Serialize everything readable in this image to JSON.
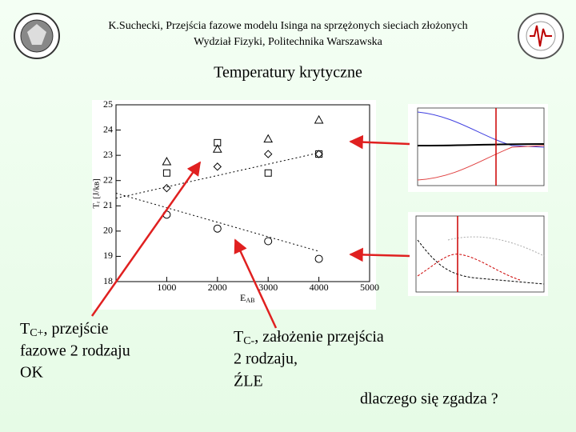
{
  "header": {
    "line1": "K.Suchecki, Przejścia fazowe modelu Isinga na sprzężonych sieciach złożonych",
    "line2": "Wydział Fizyki, Politechnika Warszawska"
  },
  "title": "Temperatury krytyczne",
  "chart_data": {
    "type": "scatter",
    "x_label": {
      "main": "E",
      "sub": "AB"
    },
    "y_label": "Tᵣ [J/kʙ]",
    "x": [
      1000,
      2000,
      3000,
      4000
    ],
    "series": [
      {
        "marker": "triangle",
        "color": "#000000",
        "values": [
          22.75,
          23.25,
          23.65,
          24.4
        ]
      },
      {
        "marker": "square",
        "color": "#000000",
        "values": [
          22.3,
          23.5,
          22.3,
          23.05
        ]
      },
      {
        "marker": "diamond",
        "color": "#000000",
        "values": [
          21.7,
          22.55,
          23.05,
          23.05
        ]
      },
      {
        "marker": "circle",
        "color": "#000000",
        "values": [
          20.65,
          20.1,
          19.6,
          18.9
        ]
      }
    ],
    "fits": [
      {
        "x": [
          0,
          4000
        ],
        "values": [
          21.3,
          23.1
        ]
      },
      {
        "x": [
          0,
          4000
        ],
        "values": [
          21.5,
          19.2
        ]
      }
    ],
    "xlim": [
      0,
      5000
    ],
    "xticks": [
      1000,
      2000,
      3000,
      4000,
      5000
    ],
    "ylim": [
      18,
      25
    ],
    "yticks": [
      18,
      19,
      20,
      21,
      22,
      23,
      24,
      25
    ]
  },
  "note_left": {
    "line1": {
      "main": "T",
      "sub": "C+",
      "rest": ", przejście"
    },
    "line2": "fazowe 2 rodzaju",
    "line3": "OK"
  },
  "note_right": {
    "line1": {
      "main": "T",
      "sub": "C-",
      "rest": ", założenie przejścia"
    },
    "line2": "2 rodzaju,",
    "line3": "ŹLE"
  },
  "question": "dlaczego się zgadza ?"
}
